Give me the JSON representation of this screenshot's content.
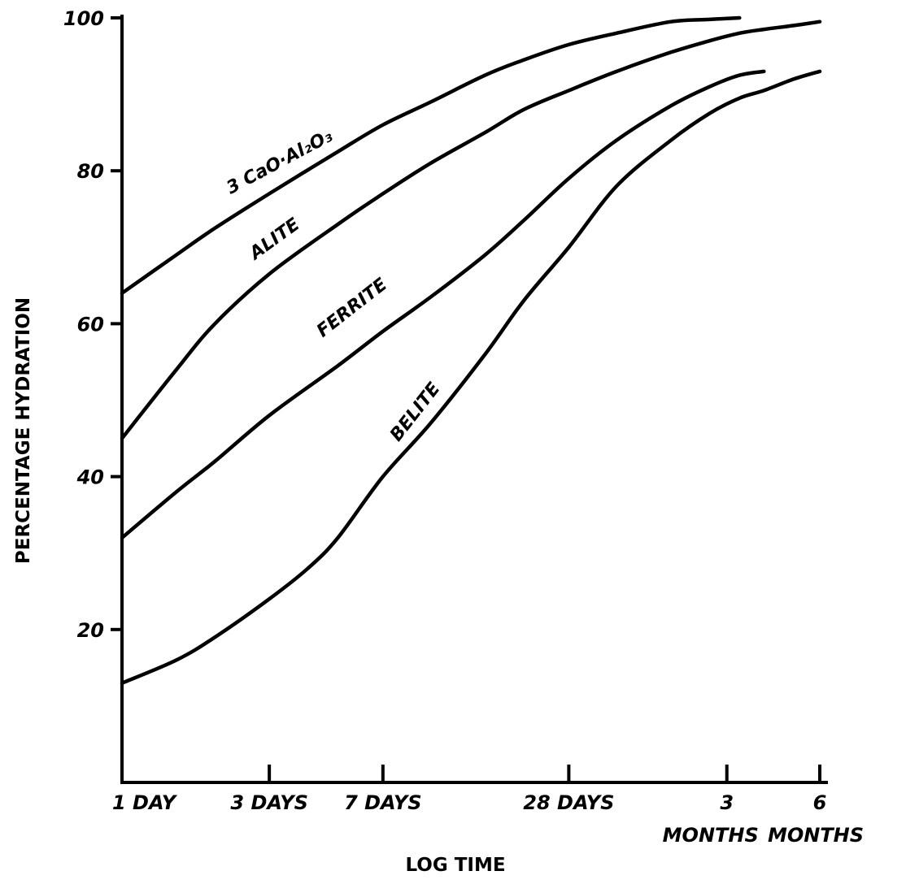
{
  "chart_data": {
    "type": "line",
    "title": "",
    "xlabel": "LOG TIME",
    "ylabel": "PERCENTAGE HYDRATION",
    "x_scale": "log",
    "x_unit": "days",
    "xlim": [
      1,
      182
    ],
    "ylim": [
      0,
      100
    ],
    "grid": false,
    "legend": "none",
    "y_ticks": [
      {
        "value": 20,
        "label": "20"
      },
      {
        "value": 40,
        "label": "40"
      },
      {
        "value": 60,
        "label": "60"
      },
      {
        "value": 80,
        "label": "80"
      },
      {
        "value": 100,
        "label": "100"
      }
    ],
    "x_ticks": [
      {
        "value": 1,
        "label": "1 DAY",
        "label2": ""
      },
      {
        "value": 3,
        "label": "3 DAYS",
        "label2": ""
      },
      {
        "value": 7,
        "label": "7 DAYS",
        "label2": ""
      },
      {
        "value": 28,
        "label": "28 DAYS",
        "label2": ""
      },
      {
        "value": 91,
        "label": "3",
        "label2": "MONTHS"
      },
      {
        "value": 182,
        "label": "6",
        "label2": "MONTHS"
      }
    ],
    "series": [
      {
        "name": "3 CaO·Al₂O₃",
        "x": [
          1,
          1.5,
          2,
          3,
          5,
          7,
          10,
          15,
          20,
          28,
          40,
          60,
          80,
          100
        ],
        "y": [
          64,
          69,
          72.5,
          77,
          82.5,
          86,
          89,
          92.5,
          94.5,
          96.5,
          98,
          99.5,
          99.8,
          100
        ]
      },
      {
        "name": "ALITE",
        "x": [
          1,
          1.5,
          2,
          3,
          5,
          7,
          10,
          15,
          20,
          28,
          40,
          60,
          80,
          100,
          120,
          150,
          182
        ],
        "y": [
          45,
          54,
          60,
          66.5,
          73,
          77,
          81,
          85,
          88,
          90.5,
          93,
          95.5,
          97,
          98,
          98.5,
          99,
          99.5
        ]
      },
      {
        "name": "FERRITE",
        "x": [
          1,
          1.5,
          2,
          3,
          5,
          7,
          10,
          15,
          20,
          28,
          40,
          60,
          80,
          100,
          120
        ],
        "y": [
          32,
          38,
          42,
          48,
          54.5,
          59,
          63.5,
          69,
          73.5,
          79,
          84,
          88.5,
          91,
          92.5,
          93
        ]
      },
      {
        "name": "BELITE",
        "x": [
          1,
          1.5,
          2,
          3,
          4,
          5,
          7,
          10,
          15,
          20,
          28,
          40,
          60,
          80,
          100,
          120,
          150,
          182
        ],
        "y": [
          13,
          16,
          19,
          24,
          28,
          32,
          40,
          47,
          56,
          63,
          70,
          78,
          84,
          87.5,
          89.5,
          90.5,
          92,
          93
        ]
      }
    ],
    "curve_labels": [
      {
        "text": "3 CaO·Al₂O₃",
        "x": 3.3,
        "y": 80.5
      },
      {
        "text": "ALITE",
        "x": 3.2,
        "y": 70.5
      },
      {
        "text": "FERRITE",
        "x": 5.7,
        "y": 61.5
      },
      {
        "text": "BELITE",
        "x": 9.2,
        "y": 48
      }
    ]
  }
}
